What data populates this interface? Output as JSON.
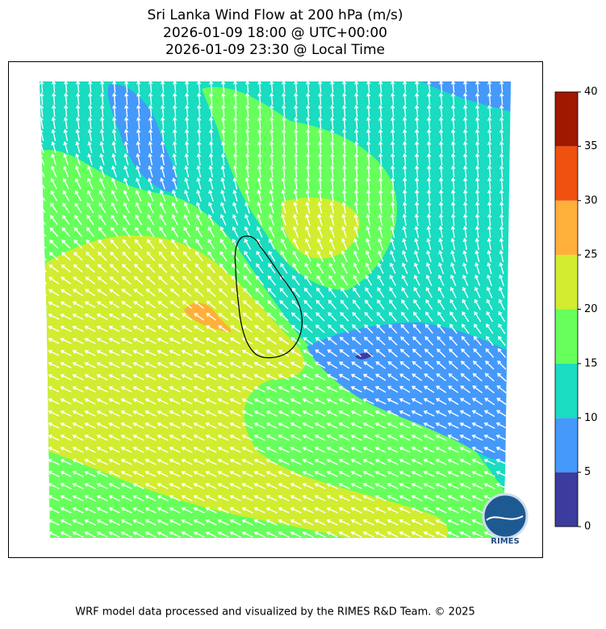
{
  "title": [
    "Sri Lanka Wind Flow at 200 hPa (m/s)",
    "2026-01-09 18:00 @ UTC+00:00",
    "2026-01-09 23:30 @ Local Time"
  ],
  "colorbar": {
    "levels": [
      0,
      5,
      10,
      15,
      20,
      25,
      30,
      35,
      40
    ],
    "colors": [
      "#3c3c9e",
      "#4499fb",
      "#19dcc0",
      "#66ff5c",
      "#d2ec30",
      "#ffb03a",
      "#f05010",
      "#a01800"
    ]
  },
  "logo": "RIMES",
  "footer": "WRF model data processed and visualized by the RIMES R&D Team. © 2025"
}
